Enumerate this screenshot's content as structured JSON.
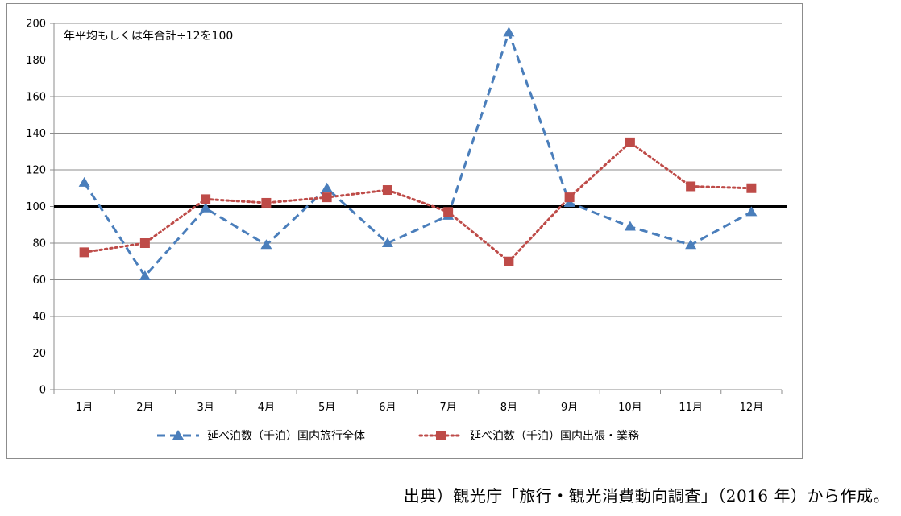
{
  "chart_data": {
    "type": "line",
    "note": "年平均もしくは年合計÷12を100",
    "categories": [
      "1月",
      "2月",
      "3月",
      "4月",
      "5月",
      "6月",
      "7月",
      "8月",
      "9月",
      "10月",
      "11月",
      "12月"
    ],
    "ylim": [
      0,
      200
    ],
    "yticks": [
      0,
      20,
      40,
      60,
      80,
      100,
      120,
      140,
      160,
      180,
      200
    ],
    "reference_line": 100,
    "grid": true,
    "legend_position": "bottom",
    "series": [
      {
        "name": "延べ泊数（千泊）国内旅行全体",
        "values": [
          113,
          62,
          99,
          79,
          110,
          80,
          95,
          195,
          102,
          89,
          79,
          97
        ],
        "color": "#4a7ebb",
        "marker": "triangle",
        "line_style": "dashed"
      },
      {
        "name": "延べ泊数（千泊）国内出張・業務",
        "values": [
          75,
          80,
          104,
          102,
          105,
          109,
          97,
          70,
          105,
          135,
          111,
          110
        ],
        "color": "#be4b48",
        "marker": "square",
        "line_style": "dotted"
      }
    ]
  },
  "source": "出典）観光庁「旅行・観光消費動向調査」（2016 年）から作成。"
}
